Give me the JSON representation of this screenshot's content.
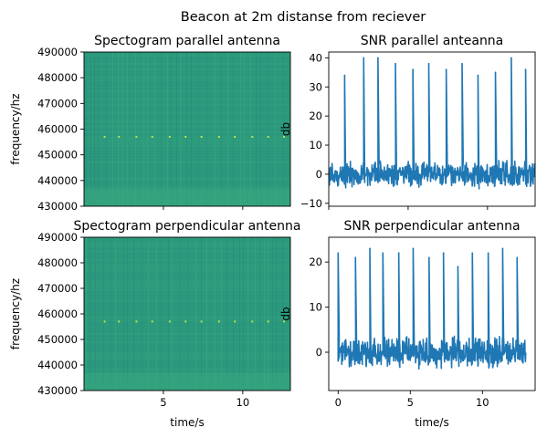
{
  "suptitle": "Beacon at 2m distanse from reciever",
  "colors": {
    "line": "#1f77b4",
    "spectro_base": "#2c9a7d",
    "spectro_band": "#39a97f",
    "beacon_dot": "#c6e04a"
  },
  "chart_data": [
    {
      "type": "heatmap",
      "title": "Spectogram parallel antenna",
      "xlabel": "",
      "ylabel": "frequency/hz",
      "xlim": [
        0,
        13
      ],
      "ylim": [
        430000,
        490000
      ],
      "yticks": [
        430000,
        440000,
        450000,
        460000,
        470000,
        480000,
        490000
      ],
      "ytick_labels": [
        "430000",
        "440000",
        "450000",
        "460000",
        "470000",
        "480000",
        "490000"
      ],
      "xticks": [
        5,
        10
      ],
      "xtick_labels": [
        "",
        ""
      ],
      "beacon_frequency": 457000,
      "beacon_times": [
        1.3,
        2.2,
        3.3,
        4.3,
        5.4,
        6.4,
        7.4,
        8.5,
        9.5,
        10.6,
        11.6,
        12.6
      ]
    },
    {
      "type": "line",
      "title": "SNR parallel anteanna",
      "xlabel": "",
      "ylabel": "db",
      "xlim": [
        0,
        13
      ],
      "ylim": [
        -11,
        42
      ],
      "yticks": [
        -10,
        0,
        10,
        20,
        30,
        40
      ],
      "ytick_labels": [
        "−10",
        "0",
        "10",
        "20",
        "30",
        "40"
      ],
      "xticks": [
        0,
        5,
        10
      ],
      "xtick_labels": [
        "",
        "",
        ""
      ],
      "noise_range": [
        -5,
        5
      ],
      "series": [
        {
          "x": [
            1.0,
            2.2,
            3.1,
            4.2,
            5.3,
            6.3,
            7.4,
            8.4,
            9.4,
            10.5,
            11.5,
            12.4
          ],
          "values": [
            34,
            40,
            40,
            38,
            36,
            38,
            36,
            38,
            34,
            35,
            40,
            36
          ]
        }
      ]
    },
    {
      "type": "heatmap",
      "title": "Spectogram perpendicular antenna",
      "xlabel": "time/s",
      "ylabel": "frequency/hz",
      "xlim": [
        0,
        13
      ],
      "ylim": [
        430000,
        490000
      ],
      "yticks": [
        430000,
        440000,
        450000,
        460000,
        470000,
        480000,
        490000
      ],
      "ytick_labels": [
        "430000",
        "440000",
        "450000",
        "460000",
        "470000",
        "480000",
        "490000"
      ],
      "xticks": [
        5,
        10
      ],
      "xtick_labels": [
        "5",
        "10"
      ],
      "beacon_frequency": 457000,
      "beacon_times": [
        1.3,
        2.2,
        3.3,
        4.3,
        5.4,
        6.4,
        7.4,
        8.5,
        9.5,
        10.6,
        11.6,
        12.6
      ]
    },
    {
      "type": "line",
      "title": "SNR perpendicular antenna",
      "xlabel": "time/s",
      "ylabel": "db",
      "xlim": [
        -0.65,
        13.65
      ],
      "ylim": [
        -8.5,
        25.5
      ],
      "yticks": [
        0,
        10,
        20
      ],
      "ytick_labels": [
        "0",
        "10",
        "20"
      ],
      "xticks": [
        0,
        5,
        10
      ],
      "xtick_labels": [
        "0",
        "5",
        "10"
      ],
      "noise_range": [
        -4,
        4
      ],
      "series": [
        {
          "x": [
            0.0,
            1.2,
            2.2,
            3.1,
            4.2,
            5.2,
            6.3,
            7.3,
            8.3,
            9.3,
            10.4,
            11.4,
            12.4
          ],
          "values": [
            22,
            21,
            23,
            22,
            22,
            23,
            21,
            22,
            19,
            22,
            22,
            23,
            21
          ]
        }
      ]
    }
  ]
}
